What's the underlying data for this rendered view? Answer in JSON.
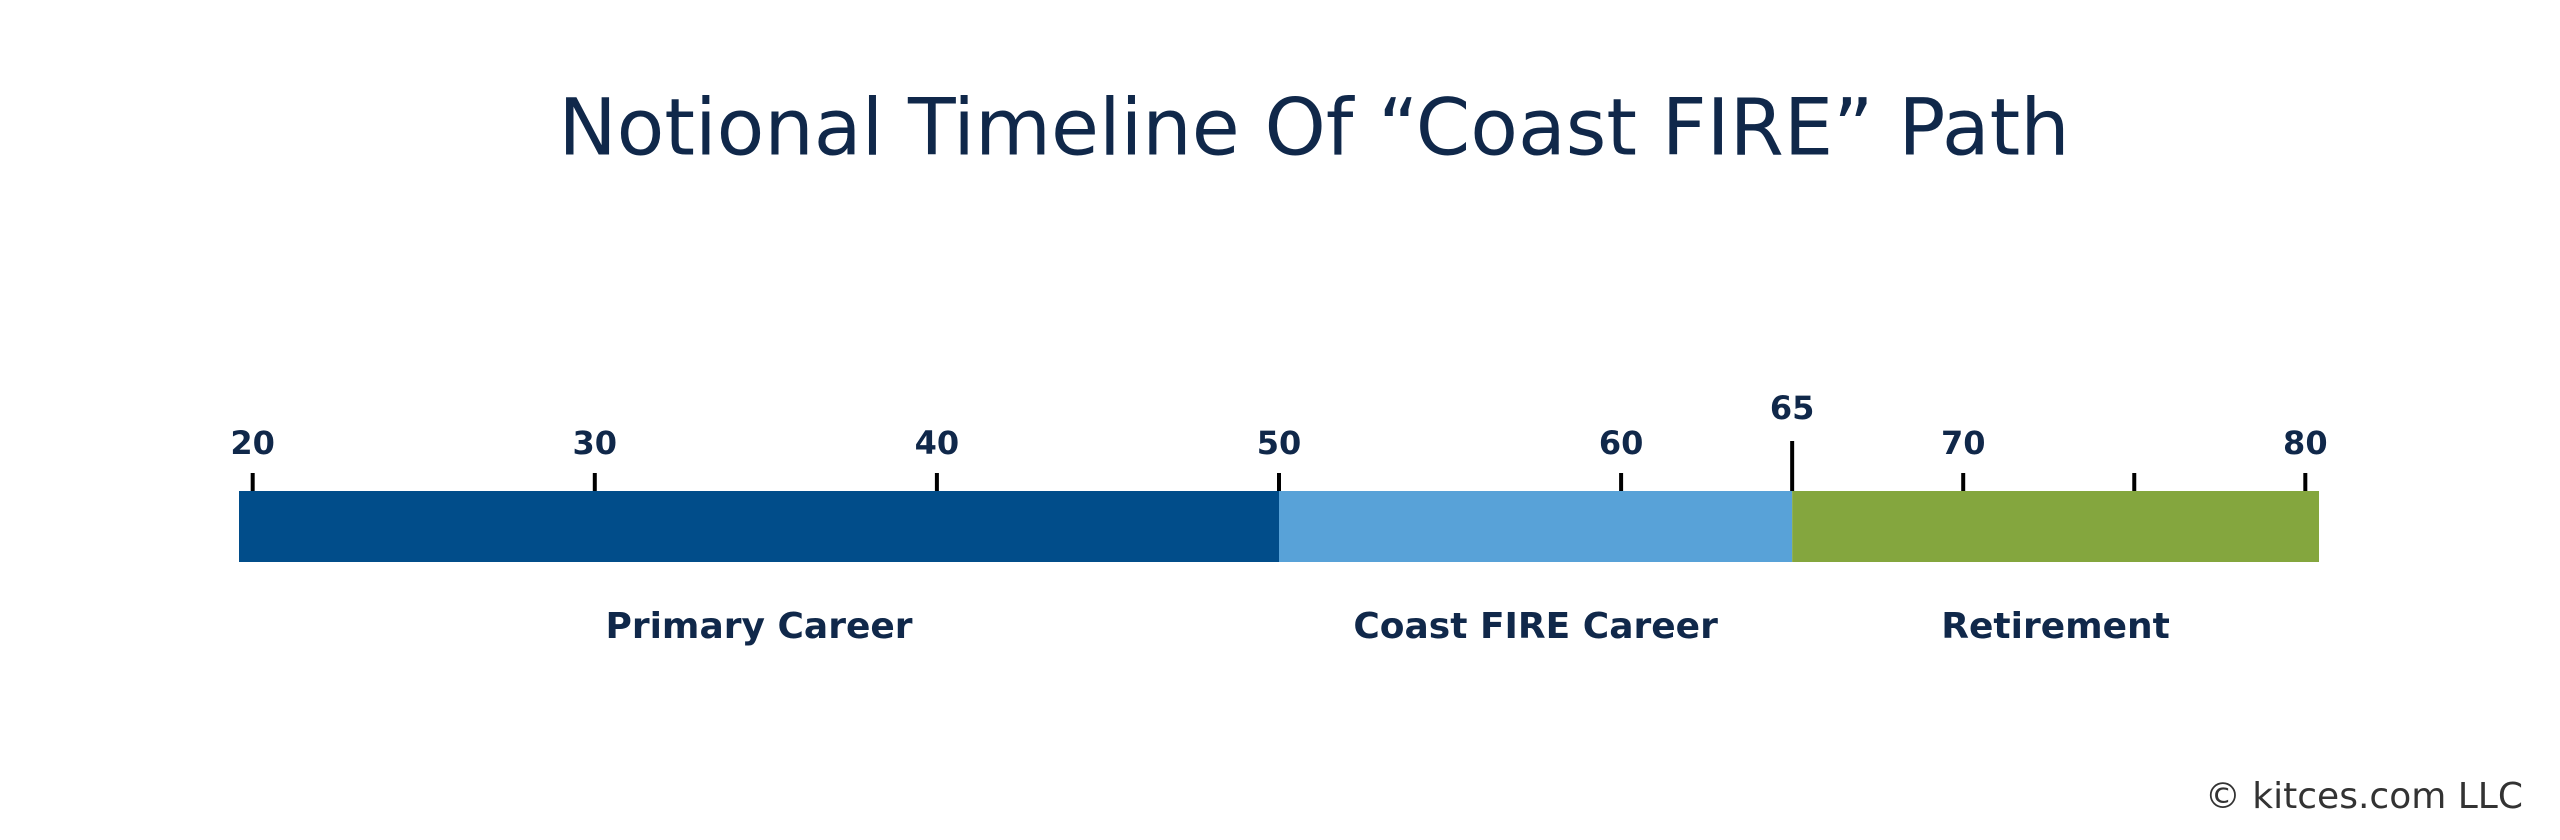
{
  "chart_data": {
    "type": "timeline",
    "title": "Notional Timeline Of “Coast FIRE” Path",
    "xlim": [
      19.6,
      80.4
    ],
    "xticks": [
      20,
      30,
      40,
      50,
      60,
      65,
      70,
      {
        "value": 75,
        "label": null
      },
      80
    ],
    "highlight_tick": 65,
    "segments": [
      {
        "name": "Primary Career",
        "start": 19.6,
        "end": 50,
        "color": "#014d8a"
      },
      {
        "name": "Coast FIRE Career",
        "start": 50,
        "end": 65,
        "color": "#58a2d8"
      },
      {
        "name": "Retirement",
        "start": 65,
        "end": 80.4,
        "color": "#84a63e"
      }
    ],
    "copyright": "© kitces.com LLC"
  }
}
